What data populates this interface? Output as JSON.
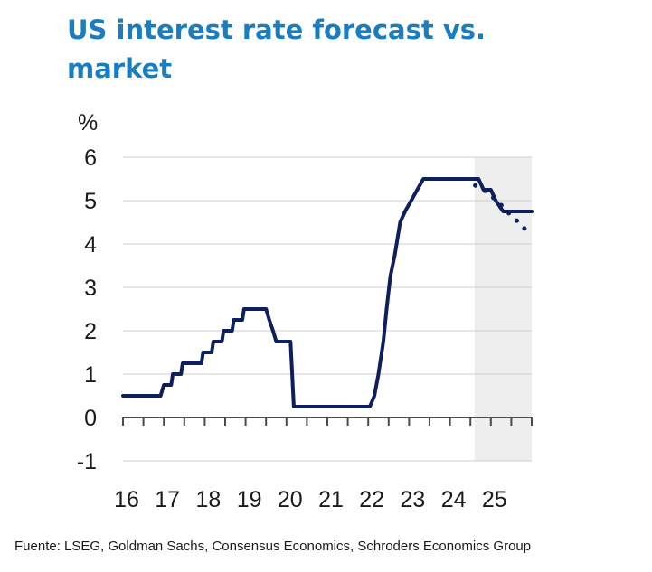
{
  "title": "US interest rate forecast vs. market",
  "source": "Fuente: LSEG, Goldman Sachs, Consensus Economics, Schroders Economics Group",
  "colors": {
    "title": "#1a7dbf",
    "line": "#0d1f5c",
    "forecast_shade": "#eeeeee",
    "grid": "#cfcfcf"
  },
  "chart_data": {
    "type": "line",
    "ylabel": "%",
    "ylim": [
      -1,
      6
    ],
    "yticks": [
      6,
      5,
      4,
      3,
      2,
      1,
      0,
      -1
    ],
    "xlim": [
      2016,
      2026
    ],
    "xtick_labels": [
      {
        "x": 2016,
        "label": "16"
      },
      {
        "x": 2017,
        "label": "17"
      },
      {
        "x": 2018,
        "label": "18"
      },
      {
        "x": 2019,
        "label": "19"
      },
      {
        "x": 2020,
        "label": "20"
      },
      {
        "x": 2021,
        "label": "21"
      },
      {
        "x": 2022,
        "label": "22"
      },
      {
        "x": 2023,
        "label": "23"
      },
      {
        "x": 2024,
        "label": "24"
      },
      {
        "x": 2025,
        "label": "25"
      }
    ],
    "grid": "horizontal",
    "forecast_region": [
      2024.6,
      2026
    ],
    "series": [
      {
        "style": "solid",
        "points": [
          [
            2016.0,
            0.5
          ],
          [
            2016.92,
            0.5
          ],
          [
            2017.0,
            0.75
          ],
          [
            2017.18,
            0.75
          ],
          [
            2017.22,
            1.0
          ],
          [
            2017.42,
            1.0
          ],
          [
            2017.46,
            1.25
          ],
          [
            2017.92,
            1.25
          ],
          [
            2017.96,
            1.5
          ],
          [
            2018.17,
            1.5
          ],
          [
            2018.21,
            1.75
          ],
          [
            2018.42,
            1.75
          ],
          [
            2018.46,
            2.0
          ],
          [
            2018.67,
            2.0
          ],
          [
            2018.71,
            2.25
          ],
          [
            2018.92,
            2.25
          ],
          [
            2018.96,
            2.5
          ],
          [
            2019.5,
            2.5
          ],
          [
            2019.58,
            2.25
          ],
          [
            2019.67,
            2.0
          ],
          [
            2019.75,
            1.75
          ],
          [
            2020.1,
            1.75
          ],
          [
            2020.18,
            0.25
          ],
          [
            2021.9,
            0.25
          ],
          [
            2022.04,
            0.25
          ],
          [
            2022.15,
            0.5
          ],
          [
            2022.25,
            1.0
          ],
          [
            2022.37,
            1.75
          ],
          [
            2022.45,
            2.5
          ],
          [
            2022.54,
            3.25
          ],
          [
            2022.65,
            3.75
          ],
          [
            2022.78,
            4.5
          ],
          [
            2022.9,
            4.75
          ],
          [
            2023.05,
            5.0
          ],
          [
            2023.2,
            5.25
          ],
          [
            2023.35,
            5.5
          ],
          [
            2024.7,
            5.5
          ],
          [
            2024.82,
            5.25
          ],
          [
            2025.0,
            5.25
          ],
          [
            2025.12,
            5.0
          ],
          [
            2025.3,
            4.75
          ],
          [
            2026.0,
            4.75
          ]
        ]
      },
      {
        "style": "dotted",
        "points": [
          [
            2024.62,
            5.35
          ],
          [
            2024.9,
            5.2
          ],
          [
            2025.08,
            5.05
          ],
          [
            2025.25,
            4.9
          ],
          [
            2025.45,
            4.7
          ],
          [
            2025.62,
            4.55
          ],
          [
            2025.78,
            4.4
          ],
          [
            2025.92,
            4.25
          ],
          [
            2026.0,
            4.2
          ]
        ]
      }
    ]
  }
}
